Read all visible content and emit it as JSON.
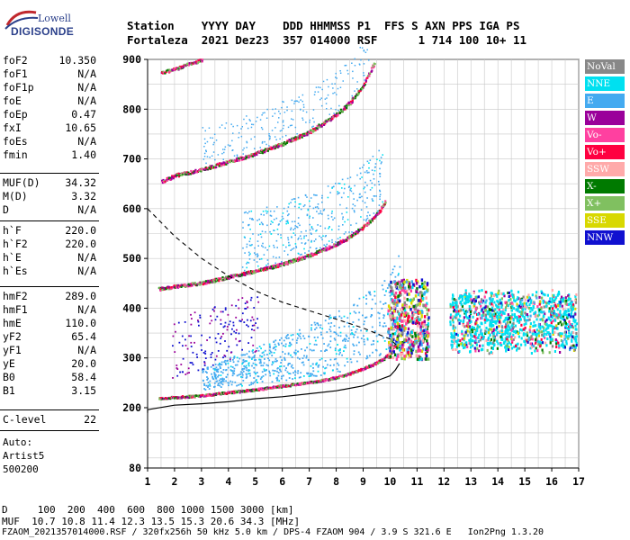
{
  "logo": {
    "line1": "Lowell",
    "line2": "DIGISONDE"
  },
  "header": {
    "row1": "Station    YYYY DAY    DDD HHMMSS P1  FFS S AXN PPS IGA PS",
    "row2": "Fortaleza  2021 Dez23  357 014000 RSF      1 714 100 10+ 11"
  },
  "params_group1": [
    {
      "name": "foF2",
      "value": "10.350"
    },
    {
      "name": "foF1",
      "value": "N/A"
    },
    {
      "name": "foF1p",
      "value": "N/A"
    },
    {
      "name": "foE",
      "value": "N/A"
    },
    {
      "name": "foEp",
      "value": "0.47"
    },
    {
      "name": "fxI",
      "value": "10.65"
    },
    {
      "name": "foEs",
      "value": "N/A"
    },
    {
      "name": "fmin",
      "value": "1.40"
    }
  ],
  "params_group2": [
    {
      "name": "MUF(D)",
      "value": "34.32"
    },
    {
      "name": "M(D)",
      "value": "3.32"
    },
    {
      "name": "D",
      "value": "N/A"
    }
  ],
  "params_group3": [
    {
      "name": "h`F",
      "value": "220.0"
    },
    {
      "name": "h`F2",
      "value": "220.0"
    },
    {
      "name": "h`E",
      "value": "N/A"
    },
    {
      "name": "h`Es",
      "value": "N/A"
    }
  ],
  "params_group4": [
    {
      "name": "hmF2",
      "value": "289.0"
    },
    {
      "name": "hmF1",
      "value": "N/A"
    },
    {
      "name": "hmE",
      "value": "110.0"
    },
    {
      "name": "yF2",
      "value": "65.4"
    },
    {
      "name": "yF1",
      "value": "N/A"
    },
    {
      "name": "yE",
      "value": "20.0"
    },
    {
      "name": "B0",
      "value": "58.4"
    },
    {
      "name": "B1",
      "value": "3.15"
    }
  ],
  "params_group5": [
    {
      "name": "C-level",
      "value": "22"
    }
  ],
  "autoscaling": {
    "line1": "Auto:",
    "line2": "Artist5",
    "line3": "500200"
  },
  "legend": [
    {
      "label": "NoVal",
      "color": "#888888"
    },
    {
      "label": "NNE",
      "color": "#00e0f0"
    },
    {
      "label": "E",
      "color": "#44aaf0"
    },
    {
      "label": "W",
      "color": "#9a009a"
    },
    {
      "label": "Vo-",
      "color": "#ff40a0"
    },
    {
      "label": "Vo+",
      "color": "#ff0040"
    },
    {
      "label": "SSW",
      "color": "#ffaaaa"
    },
    {
      "label": "X-",
      "color": "#007a00"
    },
    {
      "label": "X+",
      "color": "#80c060"
    },
    {
      "label": "SSE",
      "color": "#d8d800"
    },
    {
      "label": "NNW",
      "color": "#1010d0"
    }
  ],
  "footer": {
    "d_row": "D     100  200  400  600  800 1000 1500 3000 [km]",
    "muf_row": "MUF  10.7 10.8 11.4 12.3 13.5 15.3 20.6 34.3 [MHz]",
    "file_row": "FZAOM_2021357014000.RSF / 320fx256h 50 kHz 5.0 km / DPS-4 FZAOM 904 / 3.9 S 321.6 E   Ion2Png 1.3.20"
  },
  "chart_data": {
    "type": "scatter",
    "xlim": [
      1,
      17
    ],
    "ylim": [
      80,
      900
    ],
    "x_ticks": [
      1,
      2,
      3,
      4,
      5,
      6,
      7,
      8,
      9,
      10,
      11,
      12,
      13,
      14,
      15,
      16,
      17
    ],
    "y_ticks": [
      80,
      200,
      300,
      400,
      500,
      600,
      700,
      800,
      900
    ],
    "grid": true,
    "legend_position": "right",
    "trace_main_f2": {
      "x": [
        1.4,
        2.0,
        3.0,
        4.0,
        5.0,
        6.0,
        7.0,
        8.0,
        8.5,
        9.0,
        9.5,
        9.8,
        10.0,
        10.2,
        10.35
      ],
      "y": [
        220,
        222,
        226,
        232,
        238,
        245,
        252,
        262,
        270,
        280,
        292,
        302,
        312,
        330,
        360
      ]
    },
    "trace_2hop": {
      "x": [
        1.4,
        2.0,
        3.0,
        4.0,
        5.0,
        6.0,
        7.0,
        8.0,
        8.5,
        9.0,
        9.5,
        9.8
      ],
      "y": [
        440,
        445,
        452,
        464,
        476,
        490,
        508,
        530,
        545,
        565,
        590,
        615
      ]
    },
    "trace_3hop": {
      "x": [
        1.5,
        2.0,
        3.0,
        4.0,
        5.0,
        6.0,
        7.0,
        8.0,
        8.5,
        9.0,
        9.4
      ],
      "y": [
        655,
        668,
        680,
        696,
        712,
        732,
        756,
        790,
        815,
        850,
        895
      ]
    },
    "trace_4hop": {
      "x": [
        1.5,
        2.0,
        2.5,
        3.0
      ],
      "y": [
        875,
        882,
        892,
        900
      ]
    },
    "profile_solid": {
      "x": [
        0.3,
        1.0,
        2.0,
        3.0,
        4.0,
        5.0,
        6.0,
        7.0,
        8.0,
        9.0,
        9.6,
        10.0,
        10.2,
        10.35
      ],
      "y": [
        190,
        196,
        205,
        208,
        212,
        218,
        222,
        228,
        234,
        244,
        256,
        264,
        276,
        289
      ]
    },
    "profile_dashed": {
      "x": [
        1.0,
        2.0,
        3.0,
        4.0,
        5.0,
        6.0,
        7.0,
        8.0,
        9.0,
        10.0,
        10.35
      ],
      "y": [
        600,
        545,
        500,
        465,
        435,
        412,
        395,
        378,
        360,
        338,
        320
      ]
    },
    "spread_f_region": {
      "x_range": [
        12.2,
        16.9
      ],
      "y_range": [
        300,
        440
      ]
    }
  }
}
